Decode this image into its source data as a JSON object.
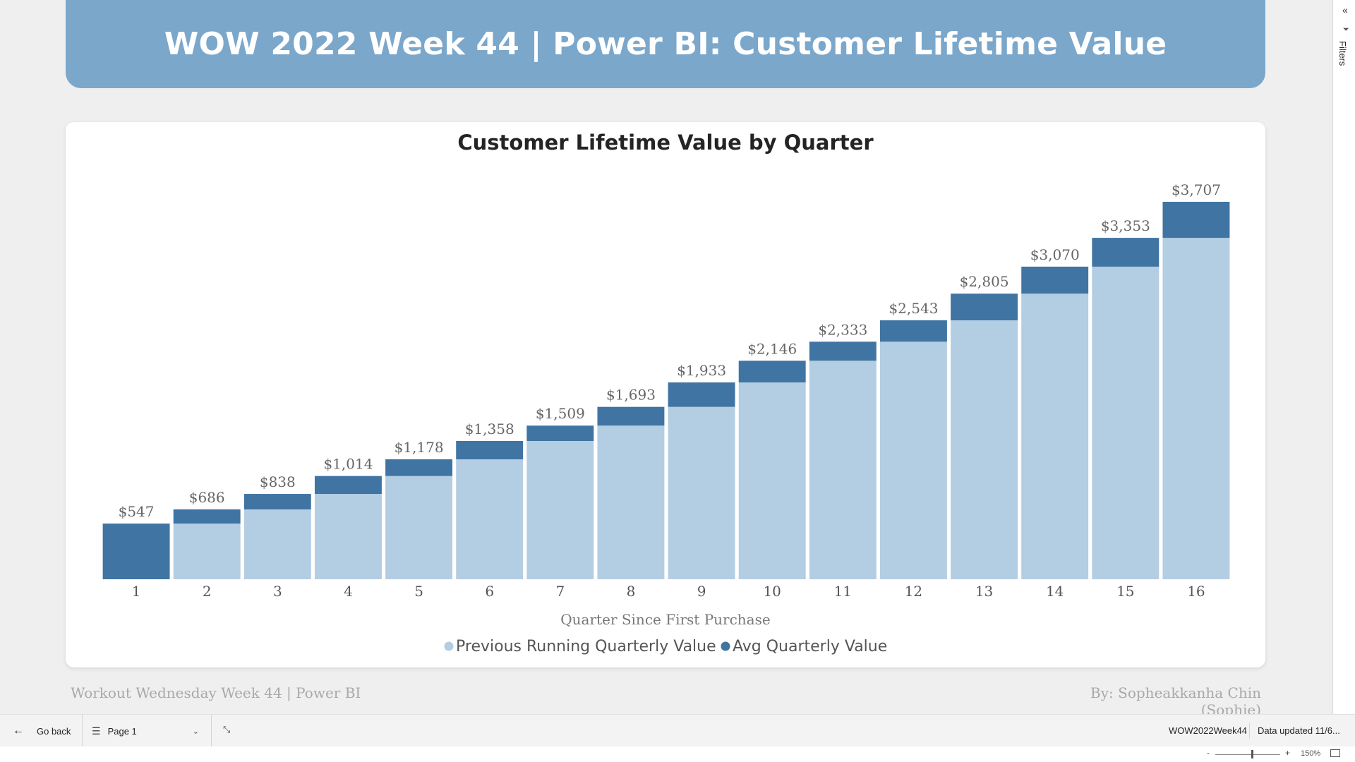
{
  "header": {
    "title": "WOW 2022 Week 44 | Power BI: Customer Lifetime Value"
  },
  "chart_data": {
    "type": "bar",
    "stacked": true,
    "title": "Customer Lifetime Value by Quarter",
    "xlabel": "Quarter Since First Purchase",
    "ylabel": "",
    "categories": [
      "1",
      "2",
      "3",
      "4",
      "5",
      "6",
      "7",
      "8",
      "9",
      "10",
      "11",
      "12",
      "13",
      "14",
      "15",
      "16"
    ],
    "series": [
      {
        "name": "Previous Running Quarterly Value",
        "color": "#b3cde3",
        "values": [
          0,
          547,
          686,
          838,
          1014,
          1178,
          1358,
          1509,
          1693,
          1933,
          2146,
          2333,
          2543,
          2805,
          3070,
          3353
        ]
      },
      {
        "name": "Avg Quarterly Value",
        "color": "#3f74a3",
        "values": [
          547,
          139,
          152,
          176,
          164,
          180,
          151,
          184,
          240,
          213,
          187,
          210,
          262,
          265,
          283,
          354
        ]
      }
    ],
    "totals": [
      547,
      686,
      838,
      1014,
      1178,
      1358,
      1509,
      1693,
      1933,
      2146,
      2333,
      2543,
      2805,
      3070,
      3353,
      3707
    ],
    "total_labels": [
      "$547",
      "$686",
      "$838",
      "$1,014",
      "$1,178",
      "$1,358",
      "$1,509",
      "$1,693",
      "$1,933",
      "$2,146",
      "$2,333",
      "$2,543",
      "$2,805",
      "$3,070",
      "$3,353",
      "$3,707"
    ],
    "ylim": [
      0,
      3707
    ],
    "grid": false,
    "legend_position": "bottom-center"
  },
  "footer": {
    "left": "Workout Wednesday Week 44 | Power BI",
    "right": "By: Sopheakkanha Chin (Sophie)"
  },
  "filters_pane": {
    "label": "Filters",
    "collapse_icon": "chevron-left-icon"
  },
  "bottom_bar": {
    "go_back": "Go back",
    "page": "Page 1",
    "report_name": "WOW2022Week44",
    "data_updated": "Data updated 11/6..."
  },
  "zoom": {
    "level": "150%",
    "minus": "-",
    "plus": "+"
  }
}
